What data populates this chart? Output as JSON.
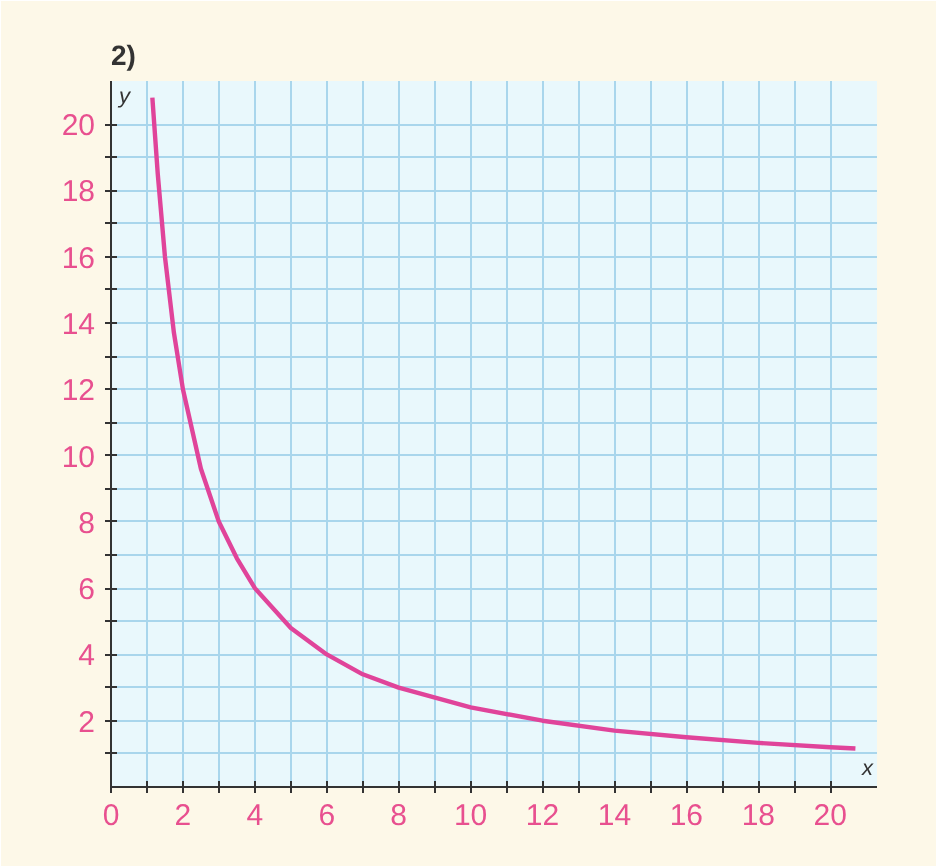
{
  "chart_data": {
    "type": "line",
    "title": "2)",
    "xlabel": "x",
    "ylabel": "y",
    "x": [
      1.15,
      1.3,
      1.5,
      1.75,
      2,
      2.5,
      3,
      3.5,
      4,
      5,
      6,
      7,
      8,
      10,
      12,
      14,
      16,
      18,
      20,
      20.7
    ],
    "series": [
      {
        "color": "#e0449a",
        "values": [
          20.8,
          18.5,
          16,
          13.7,
          12,
          9.6,
          8,
          6.9,
          6,
          4.8,
          4,
          3.4,
          3,
          2.4,
          2,
          1.7,
          1.5,
          1.33,
          1.2,
          1.16
        ]
      }
    ],
    "xlim": [
      0,
      21.3
    ],
    "ylim": [
      0,
      21.3
    ],
    "xticks": [
      {
        "value": 0,
        "label": "0"
      },
      {
        "value": 1,
        "label": null
      },
      2,
      {
        "value": 3,
        "label": null
      },
      4,
      {
        "value": 5,
        "label": null
      },
      6,
      {
        "value": 7,
        "label": null
      },
      8,
      {
        "value": 9,
        "label": null
      },
      10,
      {
        "value": 11,
        "label": null
      },
      12,
      {
        "value": 13,
        "label": null
      },
      14,
      {
        "value": 15,
        "label": null
      },
      16,
      {
        "value": 17,
        "label": null
      },
      18,
      {
        "value": 19,
        "label": null
      },
      20
    ],
    "yticks": [
      {
        "value": 1,
        "label": null
      },
      2,
      {
        "value": 3,
        "label": null
      },
      4,
      {
        "value": 5,
        "label": null
      },
      6,
      {
        "value": 7,
        "label": null
      },
      8,
      {
        "value": 9,
        "label": null
      },
      10,
      {
        "value": 11,
        "label": null
      },
      12,
      {
        "value": 13,
        "label": null
      },
      14,
      {
        "value": 15,
        "label": null
      },
      16,
      {
        "value": 17,
        "label": null
      },
      18,
      {
        "value": 19,
        "label": null
      },
      20
    ],
    "grid": true,
    "marker": "none",
    "line_style": "solid"
  }
}
